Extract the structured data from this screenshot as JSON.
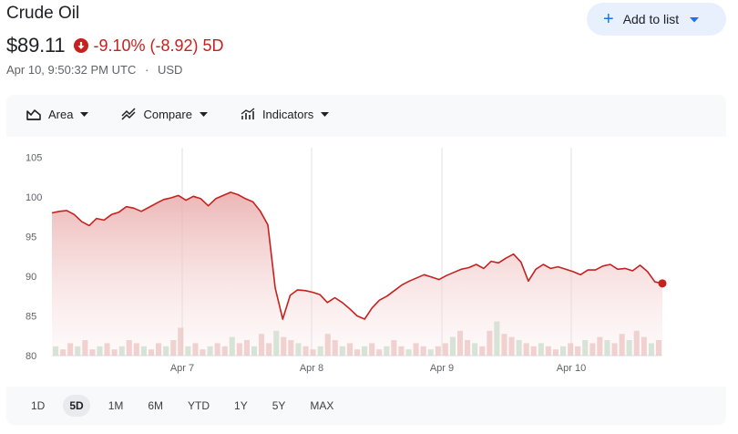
{
  "header": {
    "title": "Crude Oil",
    "price": "$89.11",
    "change_pct": "-9.10%",
    "change_abs": "(-8.92)",
    "change_period": "5D",
    "timestamp": "Apr 10, 9:50:32 PM UTC",
    "separator": "·",
    "currency": "USD"
  },
  "add_button": {
    "label": "Add to list",
    "icon": "plus-icon"
  },
  "toolbar": {
    "area_label": "Area",
    "compare_label": "Compare",
    "indicators_label": "Indicators"
  },
  "ranges": [
    "1D",
    "5D",
    "1M",
    "6M",
    "YTD",
    "1Y",
    "5Y",
    "MAX"
  ],
  "active_range": "5D",
  "colors": {
    "down": "#c5221f",
    "line": "#c5221f",
    "accent": "#1a73e8"
  },
  "chart_data": {
    "type": "area",
    "y_ticks": [
      "105",
      "100",
      "95",
      "90",
      "85",
      "80"
    ],
    "x_ticks": [
      "Apr 7",
      "Apr 8",
      "Apr 9",
      "Apr 10"
    ],
    "ylim": [
      80,
      106
    ],
    "grid": true,
    "series": [
      {
        "values": [
          98.0,
          98.2,
          98.3,
          97.8,
          96.9,
          96.4,
          97.3,
          97.1,
          97.8,
          98.1,
          98.8,
          98.6,
          98.2,
          98.7,
          99.2,
          99.7,
          99.9,
          100.2,
          99.6,
          100.1,
          99.8,
          98.9,
          99.8,
          100.2,
          100.6,
          100.3,
          99.8,
          99.4,
          98.2,
          96.5,
          88.5,
          84.6,
          87.6,
          88.3,
          88.2,
          88.0,
          87.7,
          86.7,
          87.3,
          86.7,
          85.9,
          85.0,
          84.6,
          86.0,
          87.0,
          87.5,
          88.2,
          88.9,
          89.4,
          89.8,
          90.2,
          89.9,
          89.6,
          90.1,
          90.5,
          90.9,
          91.1,
          91.5,
          91.0,
          91.9,
          91.7,
          92.3,
          92.8,
          91.8,
          89.4,
          90.9,
          91.5,
          91.0,
          91.2,
          90.9,
          90.6,
          90.2,
          90.8,
          90.8,
          91.3,
          91.5,
          90.9,
          91.0,
          90.7,
          91.4,
          90.6,
          89.3,
          89.11
        ]
      }
    ],
    "volume": [
      3,
      2,
      4,
      3,
      5,
      2,
      3,
      4,
      2,
      3,
      5,
      4,
      3,
      2,
      4,
      3,
      5,
      9,
      3,
      4,
      2,
      3,
      4,
      3,
      6,
      4,
      5,
      3,
      7,
      4,
      8,
      6,
      5,
      4,
      3,
      2,
      3,
      7,
      5,
      3,
      4,
      2,
      3,
      4,
      2,
      3,
      5,
      3,
      2,
      4,
      3,
      2,
      3,
      4,
      6,
      8,
      5,
      4,
      3,
      8,
      11,
      7,
      6,
      5,
      4,
      3,
      4,
      3,
      2,
      3,
      4,
      3,
      5,
      4,
      6,
      5,
      4,
      7,
      5,
      8,
      6,
      4,
      5
    ],
    "last_point": 89.11
  }
}
